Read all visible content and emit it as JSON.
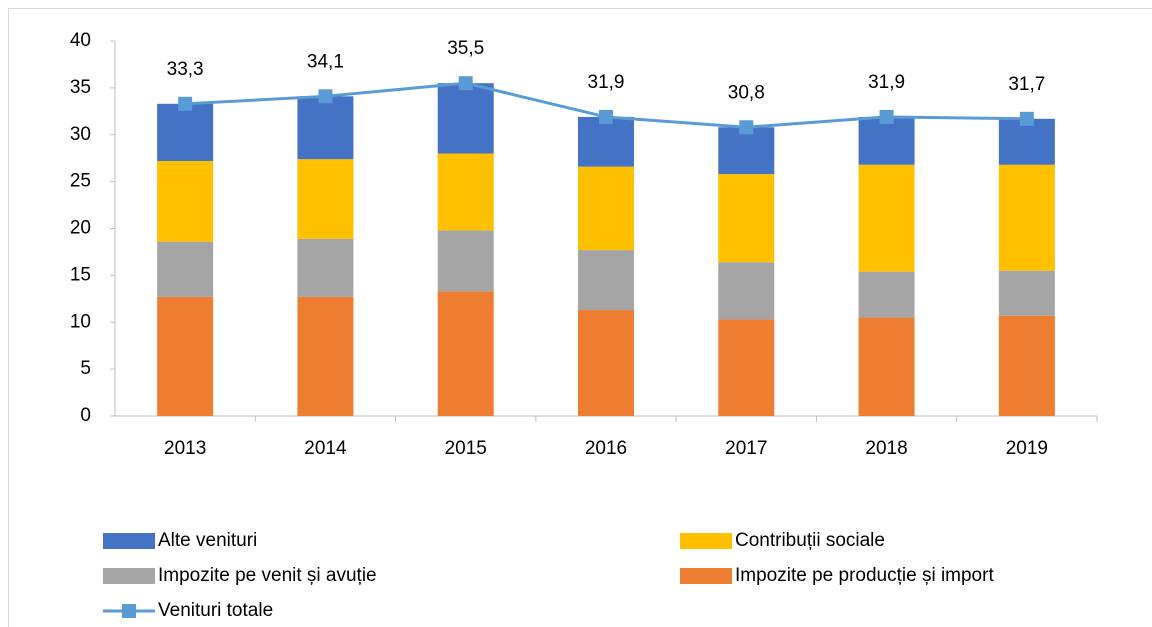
{
  "chart_data": {
    "type": "bar",
    "categories": [
      "2013",
      "2014",
      "2015",
      "2016",
      "2017",
      "2018",
      "2019"
    ],
    "series": [
      {
        "name": "Alte venituri",
        "color": "#4472c4",
        "type": "bar",
        "values": [
          6.1,
          6.7,
          7.5,
          5.3,
          5.0,
          5.1,
          4.9
        ]
      },
      {
        "name": "Contribuții sociale",
        "color": "#ffc000",
        "type": "bar",
        "values": [
          8.6,
          8.5,
          8.2,
          8.9,
          9.4,
          11.4,
          11.3
        ]
      },
      {
        "name": "Impozite pe venit și avuție",
        "color": "#a5a5a5",
        "type": "bar",
        "values": [
          5.9,
          6.2,
          6.5,
          6.4,
          6.1,
          4.9,
          4.8
        ]
      },
      {
        "name": "Impozite pe producție și import",
        "color": "#ed7d31",
        "type": "bar",
        "values": [
          12.7,
          12.7,
          13.3,
          11.3,
          10.3,
          10.5,
          10.7
        ]
      },
      {
        "name": "Venituri totale",
        "color": "#5b9bd5",
        "type": "line",
        "values": [
          33.3,
          34.1,
          35.5,
          31.9,
          30.8,
          31.9,
          31.7
        ],
        "value_labels": [
          "33,3",
          "34,1",
          "35,5",
          "31,9",
          "30,8",
          "31,9",
          "31,7"
        ]
      }
    ],
    "ylim": [
      0,
      40
    ],
    "yticks": [
      0,
      5,
      10,
      15,
      20,
      25,
      30,
      35,
      40
    ],
    "grid": false
  }
}
